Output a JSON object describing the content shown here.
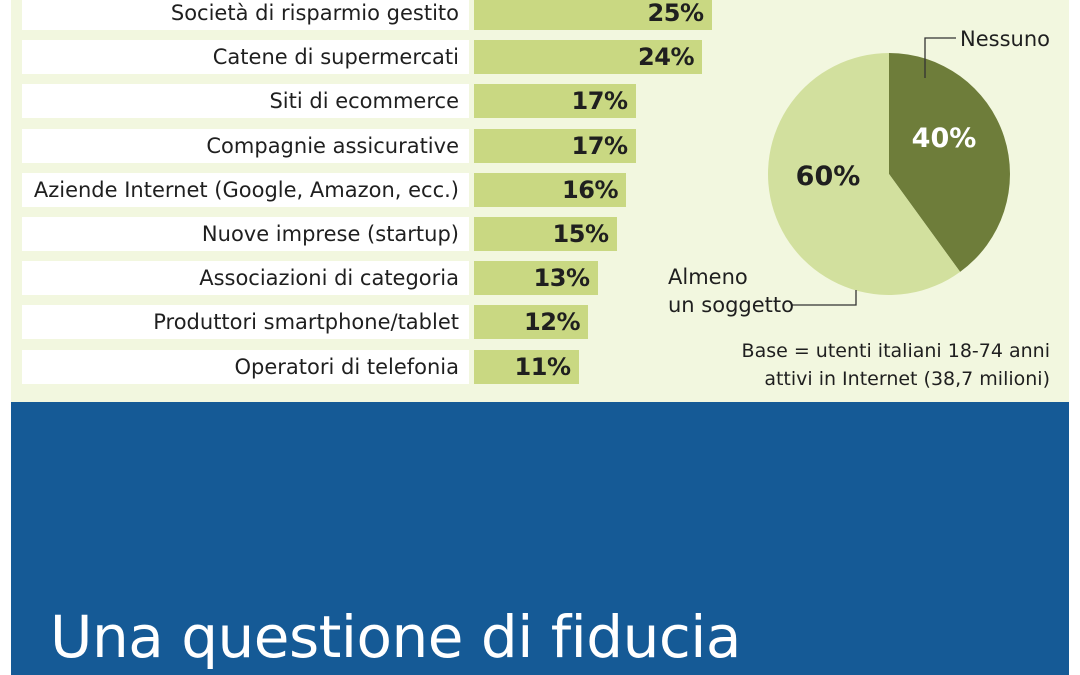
{
  "headline": "Una questione di fiducia",
  "note": {
    "line1": "Base = utenti italiani 18-74 anni",
    "line2": "attivi in Internet (38,7 milioni)"
  },
  "chart_data": [
    {
      "type": "bar",
      "orientation": "horizontal",
      "categories": [
        "Società di risparmio gestito",
        "Catene di supermercati",
        "Siti di ecommerce",
        "Compagnie assicurative",
        "Aziende Internet (Google, Amazon, ecc.)",
        "Nuove imprese (startup)",
        "Associazioni di categoria",
        "Produttori smartphone/tablet",
        "Operatori di telefonia"
      ],
      "values": [
        25,
        24,
        17,
        17,
        16,
        15,
        13,
        12,
        11
      ],
      "value_labels": [
        "25%",
        "24%",
        "17%",
        "17%",
        "16%",
        "15%",
        "13%",
        "12%",
        "11%"
      ],
      "bar_color": "#c9d882"
    },
    {
      "type": "pie",
      "slices": [
        {
          "label": "Nessuno",
          "value": 40,
          "value_label": "40%",
          "color": "#6e7d3a"
        },
        {
          "label_lines": [
            "Almeno",
            "un soggetto"
          ],
          "value": 60,
          "value_label": "60%",
          "color": "#d2e09e"
        }
      ]
    }
  ],
  "colors": {
    "panel_background": "#f2f7df",
    "banner_background": "#155a96",
    "headline_text": "#ffffff"
  }
}
